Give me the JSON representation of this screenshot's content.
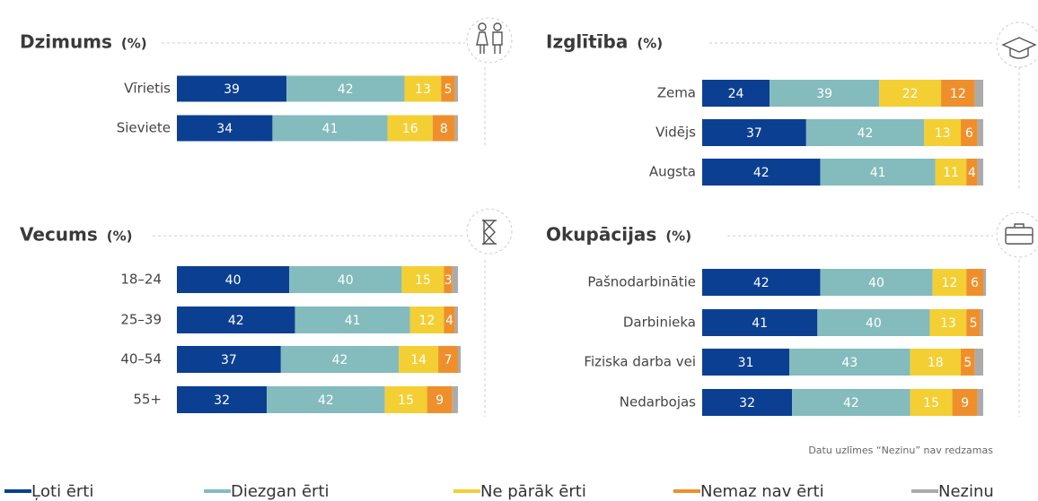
{
  "chart_data": [
    {
      "type": "bar",
      "orientation": "horizontal",
      "stacked": true,
      "title": "Dzimums",
      "subtitle": "(%)",
      "categories": [
        "Vīrietis",
        "Sieviete"
      ],
      "xlim": [
        0,
        100
      ],
      "series": [
        {
          "values": [
            39,
            34
          ]
        },
        {
          "values": [
            42,
            41
          ]
        },
        {
          "values": [
            13,
            16
          ]
        },
        {
          "values": [
            5,
            8
          ]
        },
        {
          "values": [
            1,
            1
          ]
        }
      ]
    },
    {
      "type": "bar",
      "orientation": "horizontal",
      "stacked": true,
      "title": "Izglītība",
      "subtitle": "(%)",
      "categories": [
        "Zema",
        "Vidējs",
        "Augsta"
      ],
      "xlim": [
        0,
        100
      ],
      "series": [
        {
          "values": [
            24,
            37,
            42
          ]
        },
        {
          "values": [
            39,
            42,
            41
          ]
        },
        {
          "values": [
            22,
            13,
            11
          ]
        },
        {
          "values": [
            12,
            6,
            4
          ]
        },
        {
          "values": [
            3,
            2,
            2
          ]
        }
      ]
    },
    {
      "type": "bar",
      "orientation": "horizontal",
      "stacked": true,
      "title": "Vecums",
      "subtitle": "(%)",
      "categories": [
        "18–24",
        "25–39",
        "40–54",
        "55+"
      ],
      "xlim": [
        0,
        100
      ],
      "series": [
        {
          "values": [
            40,
            42,
            37,
            32
          ]
        },
        {
          "values": [
            40,
            41,
            42,
            42
          ]
        },
        {
          "values": [
            15,
            12,
            14,
            15
          ]
        },
        {
          "values": [
            3,
            4,
            7,
            9
          ]
        },
        {
          "values": [
            2,
            1,
            1,
            2
          ]
        }
      ]
    },
    {
      "type": "bar",
      "orientation": "horizontal",
      "stacked": true,
      "title": "Okupācijas",
      "subtitle": "(%)",
      "categories": [
        "Pašnodarbinātie",
        "Darbinieka",
        "Fiziska darba vei",
        "Nedarbojas"
      ],
      "xlim": [
        0,
        100
      ],
      "series": [
        {
          "values": [
            42,
            41,
            31,
            32
          ]
        },
        {
          "values": [
            40,
            40,
            43,
            42
          ]
        },
        {
          "values": [
            12,
            13,
            18,
            15
          ]
        },
        {
          "values": [
            6,
            5,
            5,
            9
          ]
        },
        {
          "values": [
            1,
            1,
            3,
            2
          ]
        }
      ]
    }
  ],
  "legend": [
    {
      "name": "Ļoti ērti",
      "color": "#0b3f91"
    },
    {
      "name": "Diezgan ērti",
      "color": "#84bbbd"
    },
    {
      "name": "Ne pārāk ērti",
      "color": "#f3cf33"
    },
    {
      "name": "Nemaz nav ērti",
      "color": "#ef8f2c"
    },
    {
      "name": "Nezinu",
      "color": "#ababab",
      "data_labels": false
    }
  ],
  "note": "Datu uzlīmes “Nezinu” nav redzamas"
}
